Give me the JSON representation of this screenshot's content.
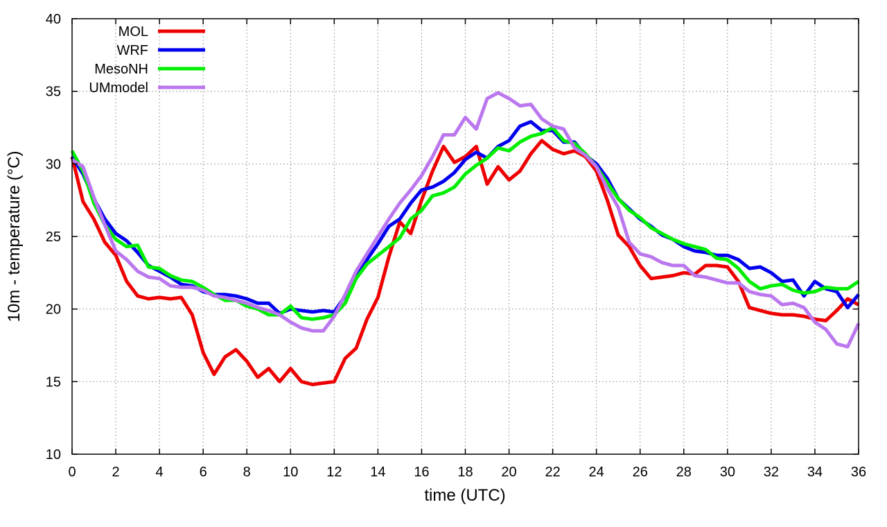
{
  "chart_data": {
    "type": "line",
    "xlabel": "time (UTC)",
    "ylabel": "10m - temperature (°C)",
    "xlim": [
      0,
      36
    ],
    "ylim": [
      10,
      40
    ],
    "xticks": [
      0,
      2,
      4,
      6,
      8,
      10,
      12,
      14,
      16,
      18,
      20,
      22,
      24,
      26,
      28,
      30,
      32,
      34,
      36
    ],
    "yticks": [
      10,
      15,
      20,
      25,
      30,
      35,
      40
    ],
    "grid": true,
    "legend_position": "top-left",
    "x": [
      0,
      0.5,
      1,
      1.5,
      2,
      2.5,
      3,
      3.5,
      4,
      4.5,
      5,
      5.5,
      6,
      6.5,
      7,
      7.5,
      8,
      8.5,
      9,
      9.5,
      10,
      10.5,
      11,
      11.5,
      12,
      12.5,
      13,
      13.5,
      14,
      14.5,
      15,
      15.5,
      16,
      16.5,
      17,
      17.5,
      18,
      18.5,
      19,
      19.5,
      20,
      20.5,
      21,
      21.5,
      22,
      22.5,
      23,
      23.5,
      24,
      24.5,
      25,
      25.5,
      26,
      26.5,
      27,
      27.5,
      28,
      28.5,
      29,
      29.5,
      30,
      30.5,
      31,
      31.5,
      32,
      32.5,
      33,
      33.5,
      34,
      34.5,
      35,
      35.5,
      36
    ],
    "series": [
      {
        "name": "MOL",
        "color": "#ee0000",
        "values": [
          30.5,
          27.4,
          26.2,
          24.6,
          23.7,
          21.9,
          20.9,
          20.7,
          20.8,
          20.7,
          20.8,
          19.6,
          17.0,
          15.5,
          16.7,
          17.2,
          16.4,
          15.3,
          15.9,
          15.0,
          15.9,
          15.0,
          14.8,
          14.9,
          15.0,
          16.6,
          17.3,
          19.3,
          20.8,
          23.6,
          26.0,
          25.2,
          27.5,
          29.5,
          31.2,
          30.1,
          30.5,
          31.2,
          28.6,
          29.8,
          28.9,
          29.5,
          30.7,
          31.6,
          31.0,
          30.7,
          30.9,
          30.5,
          29.5,
          27.5,
          25.1,
          24.3,
          23.0,
          22.1,
          22.2,
          22.3,
          22.5,
          22.4,
          23.0,
          23.0,
          22.9,
          21.9,
          20.1,
          19.9,
          19.7,
          19.6,
          19.6,
          19.5,
          19.3,
          19.2,
          19.9,
          20.7,
          20.3
        ]
      },
      {
        "name": "WRF",
        "color": "#0000ee",
        "values": [
          30.5,
          29.3,
          27.6,
          26.2,
          25.2,
          24.7,
          23.9,
          23.0,
          22.6,
          22.2,
          21.7,
          21.6,
          21.2,
          21.0,
          21.0,
          20.9,
          20.7,
          20.4,
          20.4,
          19.7,
          20.0,
          19.9,
          19.8,
          19.9,
          19.8,
          20.9,
          22.3,
          23.4,
          24.5,
          25.7,
          26.2,
          27.3,
          28.2,
          28.4,
          28.8,
          29.4,
          30.3,
          30.8,
          30.4,
          31.2,
          31.6,
          32.6,
          32.9,
          32.3,
          32.3,
          31.5,
          31.5,
          30.6,
          30.0,
          29.0,
          27.6,
          26.9,
          26.2,
          25.7,
          25.1,
          24.8,
          24.3,
          24.0,
          23.9,
          23.7,
          23.7,
          23.4,
          22.8,
          22.9,
          22.5,
          21.9,
          22.0,
          20.9,
          21.9,
          21.4,
          21.2,
          20.1,
          21.0
        ]
      },
      {
        "name": "MesoNH",
        "color": "#00ee00",
        "values": [
          30.9,
          29.5,
          27.3,
          25.8,
          24.8,
          24.3,
          24.4,
          22.9,
          22.8,
          22.3,
          22.0,
          21.9,
          21.5,
          21.0,
          20.6,
          20.6,
          20.2,
          20.0,
          19.6,
          19.6,
          20.2,
          19.4,
          19.3,
          19.4,
          19.6,
          20.4,
          22.1,
          23.1,
          23.7,
          24.3,
          24.9,
          26.2,
          26.8,
          27.8,
          28.0,
          28.4,
          29.3,
          29.9,
          30.4,
          31.1,
          30.9,
          31.5,
          31.9,
          32.1,
          32.5,
          31.6,
          31.4,
          30.7,
          29.8,
          28.7,
          27.6,
          26.8,
          26.3,
          25.6,
          25.2,
          24.8,
          24.5,
          24.3,
          24.1,
          23.5,
          23.4,
          22.8,
          21.9,
          21.4,
          21.6,
          21.7,
          21.3,
          21.1,
          21.2,
          21.5,
          21.4,
          21.4,
          21.9
        ]
      },
      {
        "name": "UMmodel",
        "color": "#bb77ee",
        "values": [
          30.3,
          29.8,
          27.7,
          25.8,
          24.0,
          23.4,
          22.6,
          22.2,
          22.1,
          21.6,
          21.5,
          21.5,
          21.3,
          20.9,
          20.8,
          20.6,
          20.4,
          20.1,
          19.9,
          19.6,
          19.1,
          18.7,
          18.5,
          18.5,
          19.5,
          21.0,
          22.6,
          23.8,
          25.0,
          26.2,
          27.3,
          28.2,
          29.2,
          30.5,
          32.0,
          32.0,
          33.2,
          32.4,
          34.5,
          34.9,
          34.5,
          34.0,
          34.1,
          33.1,
          32.6,
          32.4,
          31.1,
          30.6,
          29.8,
          28.3,
          27.0,
          24.6,
          23.8,
          23.6,
          23.2,
          23.0,
          23.0,
          22.3,
          22.2,
          22.0,
          21.8,
          21.8,
          21.2,
          21.0,
          20.9,
          20.3,
          20.4,
          20.1,
          19.1,
          18.6,
          17.6,
          17.4,
          19.0
        ]
      }
    ]
  }
}
